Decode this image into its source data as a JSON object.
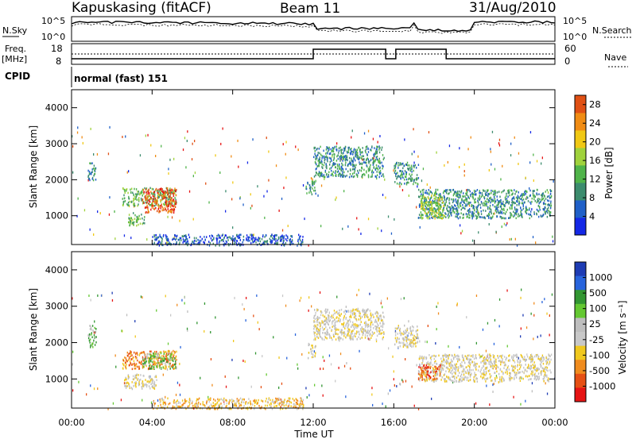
{
  "header": {
    "station": "Kapuskasing (fitACF)",
    "beam": "Beam 11",
    "date": "31/Aug/2010"
  },
  "summary_labels": {
    "nsky": "N.Sky",
    "nsearch": "N.Search",
    "nsky_top": "10^5",
    "nsky_bottom": "10^0",
    "freq_label": "Freq.",
    "freq_unit": "[MHz]",
    "freq_top": "18",
    "freq_bottom": "8",
    "nave": "Nave",
    "nave_top": "60",
    "nave_bottom": "0",
    "cpid_label": "CPID",
    "cpid_value": "normal (fast) 151"
  },
  "colors": {
    "power": [
      "#1428e6",
      "#2060c8",
      "#3c8c6e",
      "#50b44a",
      "#a0d23c",
      "#f0c814",
      "#f08c14",
      "#e05014",
      "#e61414"
    ],
    "velocity": [
      "#1e3cb4",
      "#2864dc",
      "#329632",
      "#64c832",
      "#bebebe",
      "#c8c8c8",
      "#f0c81e",
      "#f08c1e",
      "#e65014",
      "#e61414"
    ],
    "noise": "#000000"
  },
  "chart_data": [
    {
      "type": "heatmap",
      "panel": "power",
      "ylabel": "Slant Range [km]",
      "yticks": [
        "1000",
        "2000",
        "3000",
        "4000"
      ],
      "ylim": [
        200,
        4500
      ],
      "xlim": [
        "00:00",
        "24:00"
      ],
      "colorbar_label": "Power [dB]",
      "colorbar_ticks": [
        "4",
        "8",
        "12",
        "16",
        "20",
        "24",
        "28"
      ],
      "colorbar_range": [
        0,
        30
      ],
      "patches": [
        {
          "t": [
            0.8,
            1.2
          ],
          "r": [
            2000,
            2500
          ],
          "level": 2
        },
        {
          "t": [
            2.5,
            5.2
          ],
          "r": [
            1300,
            1800
          ],
          "level": 3
        },
        {
          "t": [
            3.5,
            5.2
          ],
          "r": [
            1100,
            1800
          ],
          "level": 7
        },
        {
          "t": [
            2.8,
            3.6
          ],
          "r": [
            750,
            1100
          ],
          "level": 3
        },
        {
          "t": [
            11.6,
            12.1
          ],
          "r": [
            1600,
            2000
          ],
          "level": 2
        },
        {
          "t": [
            12.0,
            15.5
          ],
          "r": [
            2100,
            2950
          ],
          "level": 2
        },
        {
          "t": [
            16.0,
            17.2
          ],
          "r": [
            1900,
            2500
          ],
          "level": 2
        },
        {
          "t": [
            17.2,
            23.8
          ],
          "r": [
            950,
            1750
          ],
          "level": 2
        },
        {
          "t": [
            17.3,
            18.5
          ],
          "r": [
            950,
            1600
          ],
          "level": 4
        },
        {
          "t": [
            4.0,
            11.5
          ],
          "r": [
            200,
            500
          ],
          "level": 1
        }
      ]
    },
    {
      "type": "heatmap",
      "panel": "velocity",
      "xlabel": "Time UT",
      "xticks": [
        "00:00",
        "04:00",
        "08:00",
        "12:00",
        "16:00",
        "20:00",
        "00:00"
      ],
      "ylabel": "Slant Range [km]",
      "yticks": [
        "1000",
        "2000",
        "3000",
        "4000"
      ],
      "ylim": [
        200,
        4500
      ],
      "xlim": [
        "00:00",
        "24:00"
      ],
      "colorbar_label": "Velocity [m s⁻¹]",
      "colorbar_ticks": [
        "1000",
        "500",
        "100",
        "25",
        "-25",
        "-100",
        "-500",
        "-1000"
      ],
      "patches": [
        {
          "t": [
            0.8,
            1.2
          ],
          "r": [
            1900,
            2500
          ],
          "level": 3
        },
        {
          "t": [
            2.5,
            5.2
          ],
          "r": [
            1300,
            1800
          ],
          "level": 7
        },
        {
          "t": [
            3.5,
            5.2
          ],
          "r": [
            1300,
            1750
          ],
          "level": 3
        },
        {
          "t": [
            2.6,
            4.2
          ],
          "r": [
            750,
            1150
          ],
          "level": 5
        },
        {
          "t": [
            11.7,
            12.1
          ],
          "r": [
            1600,
            2000
          ],
          "level": 5
        },
        {
          "t": [
            12.0,
            15.5
          ],
          "r": [
            2100,
            2950
          ],
          "level": 5
        },
        {
          "t": [
            16.0,
            17.2
          ],
          "r": [
            1900,
            2500
          ],
          "level": 5
        },
        {
          "t": [
            17.2,
            23.8
          ],
          "r": [
            950,
            1700
          ],
          "level": 5
        },
        {
          "t": [
            17.2,
            18.3
          ],
          "r": [
            1000,
            1400
          ],
          "level": 8
        },
        {
          "t": [
            4.0,
            11.5
          ],
          "r": [
            200,
            500
          ],
          "level": 6
        }
      ]
    }
  ],
  "axis_labels": {
    "time_ticks": [
      "00:00",
      "04:00",
      "08:00",
      "12:00",
      "16:00",
      "20:00",
      "00:00"
    ],
    "xlabel": "Time UT"
  }
}
